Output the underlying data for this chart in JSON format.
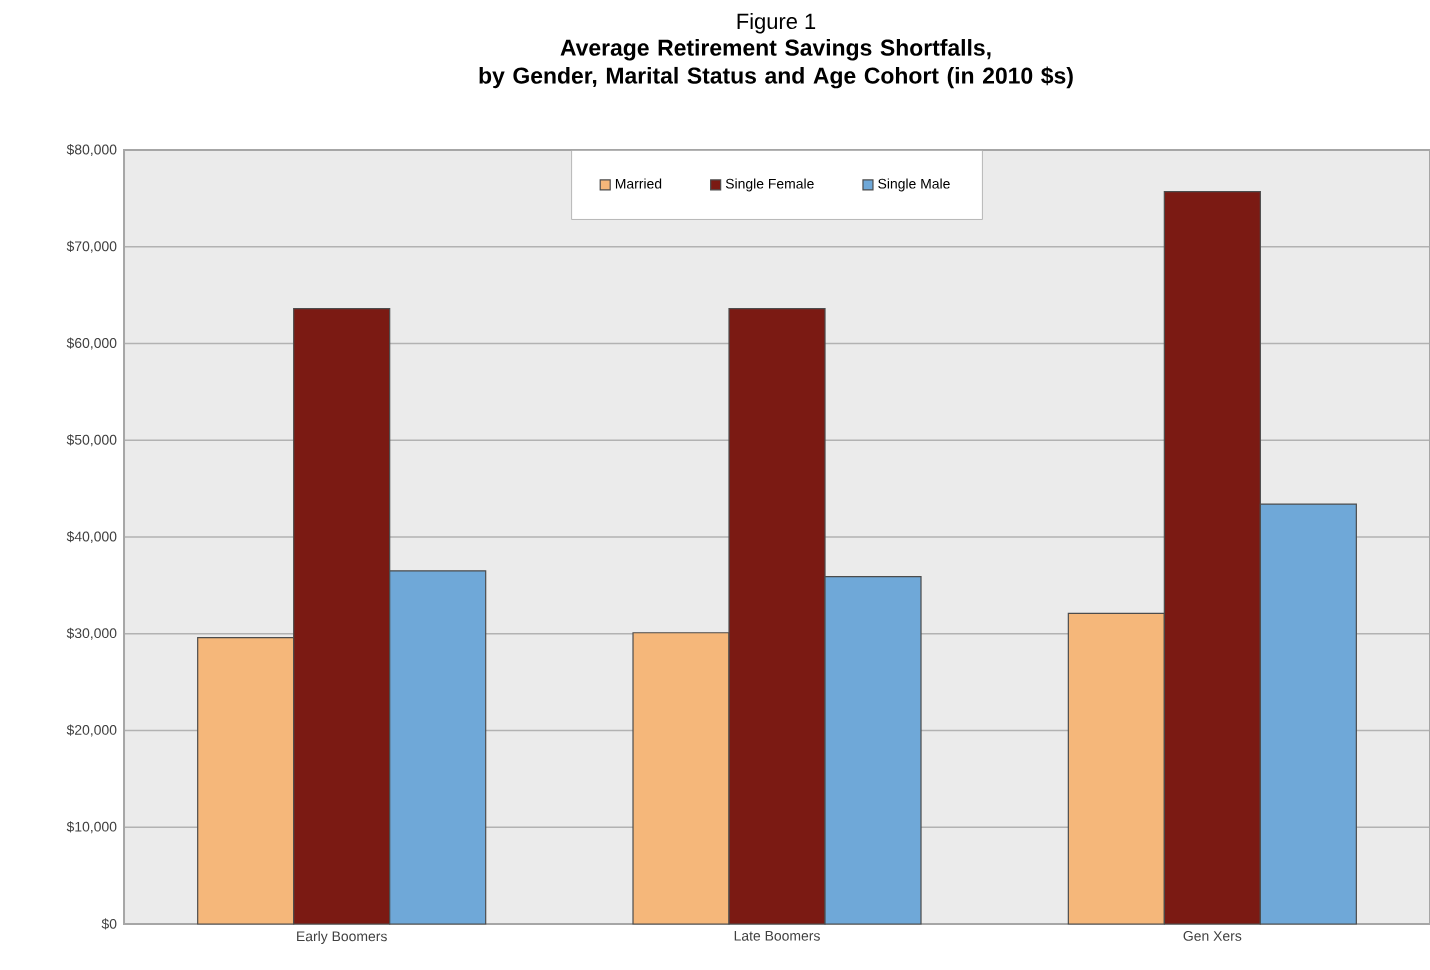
{
  "chart_data": {
    "type": "bar",
    "title": "Figure 1",
    "subtitle": "Average Retirement Savings Shortfalls,\nby Gender, Marital Status and Age Cohort (in 2010 $s)",
    "categories": [
      "Early Boomers",
      "Late Boomers",
      "Gen Xers"
    ],
    "series": [
      {
        "name": "Married",
        "color": "#f5b77a",
        "values": [
          29600,
          30100,
          32100
        ]
      },
      {
        "name": "Single Female",
        "color": "#7b1a13",
        "values": [
          63600,
          63600,
          75700
        ]
      },
      {
        "name": "Single Male",
        "color": "#6fa8d8",
        "values": [
          36500,
          35900,
          43400
        ]
      }
    ],
    "ylim": [
      0,
      80000
    ],
    "yticks": [
      {
        "value": 0,
        "label": "$0"
      },
      {
        "value": 10000,
        "label": "$10,000"
      },
      {
        "value": 20000,
        "label": "$20,000"
      },
      {
        "value": 30000,
        "label": "$30,000"
      },
      {
        "value": 40000,
        "label": "$40,000"
      },
      {
        "value": 50000,
        "label": "$50,000"
      },
      {
        "value": 60000,
        "label": "$60,000"
      },
      {
        "value": 70000,
        "label": "$70,000"
      },
      {
        "value": 80000,
        "label": "$80,000"
      }
    ],
    "grid": "y",
    "legend": "top"
  }
}
